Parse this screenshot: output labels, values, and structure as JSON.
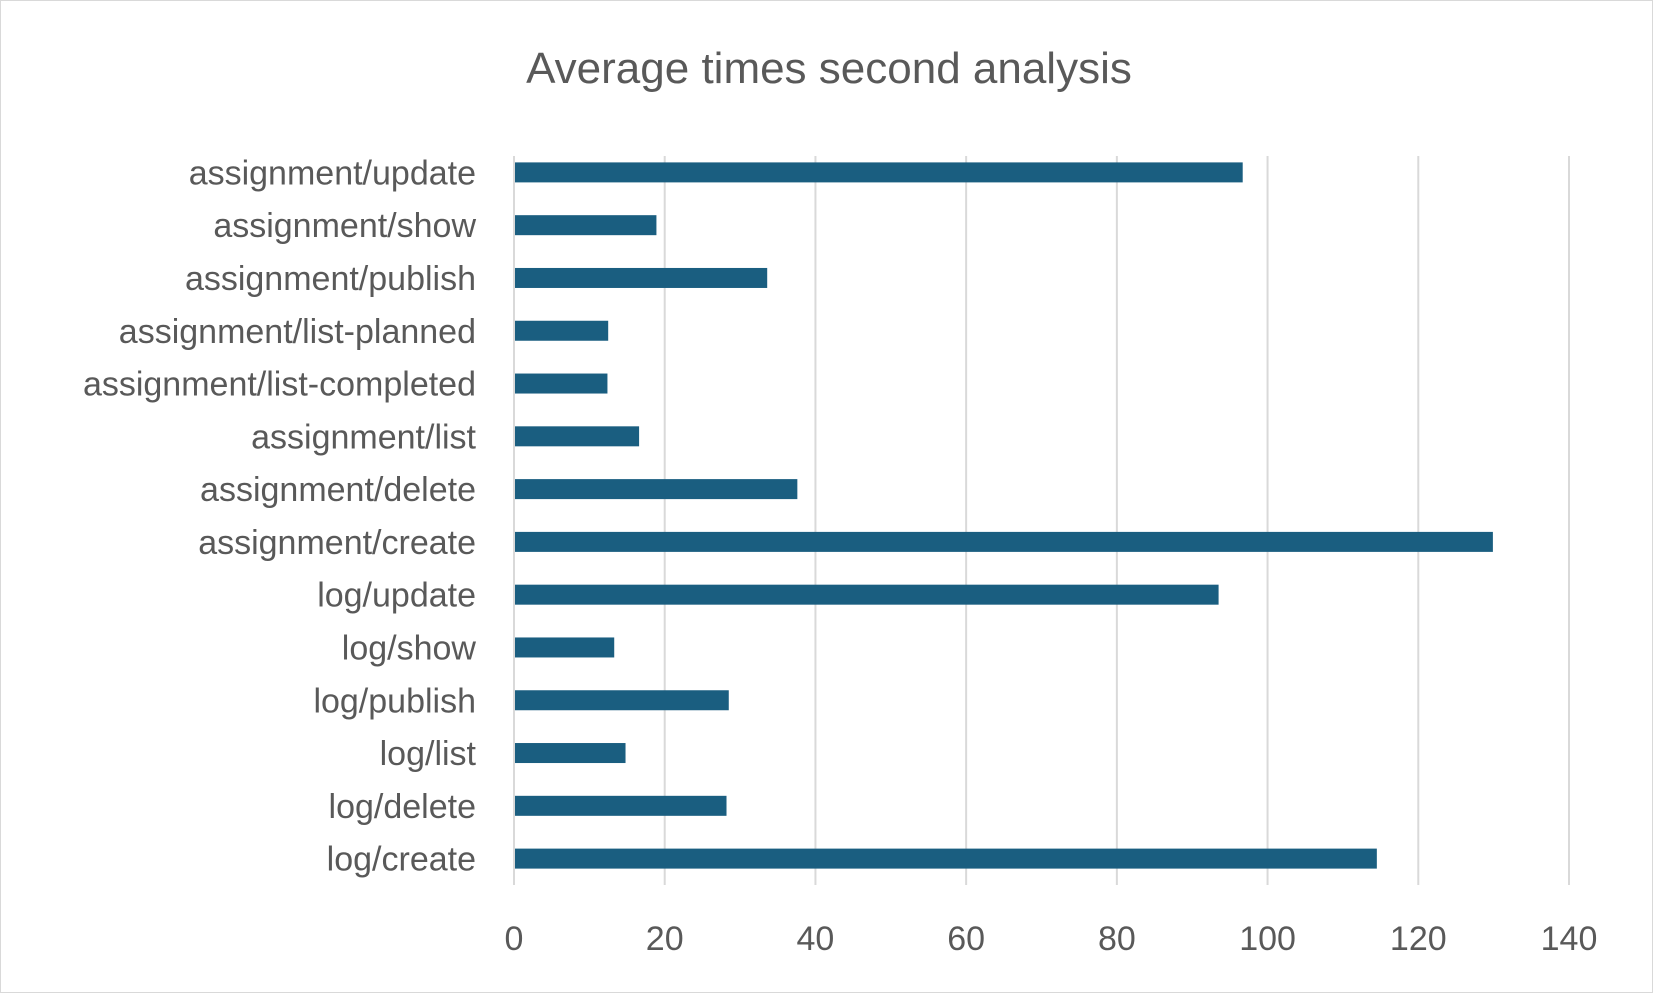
{
  "chart_data": {
    "type": "bar",
    "orientation": "horizontal",
    "title": "Average times second analysis",
    "xlabel": "",
    "ylabel": "",
    "xlim": [
      0,
      140
    ],
    "x_ticks": [
      0,
      20,
      40,
      60,
      80,
      100,
      120,
      140
    ],
    "grid": true,
    "legend": "none",
    "bar_color": "#1a5e80",
    "grid_color": "#d9d9d9",
    "text_color": "#595959",
    "categories": [
      "log/create",
      "log/delete",
      "log/list",
      "log/publish",
      "log/show",
      "log/update",
      "assignment/create",
      "assignment/delete",
      "assignment/list",
      "assignment/list-completed",
      "assignment/list-planned",
      "assignment/publish",
      "assignment/show",
      "assignment/update"
    ],
    "values": [
      114.5,
      28.2,
      14.8,
      28.5,
      13.3,
      93.5,
      129.9,
      37.6,
      16.6,
      12.4,
      12.5,
      33.6,
      18.9,
      96.7
    ]
  }
}
